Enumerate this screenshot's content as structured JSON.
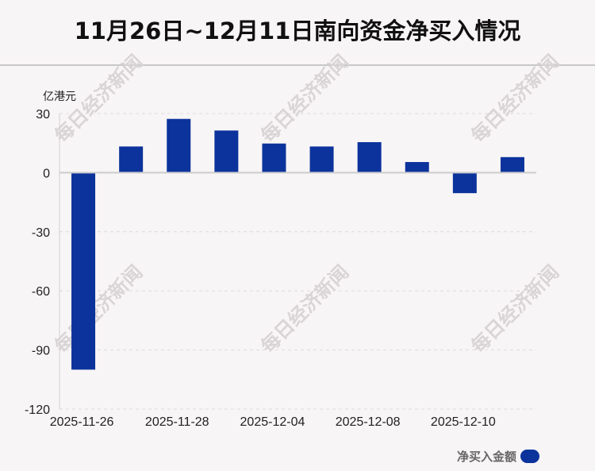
{
  "title": "11月26日~12月11日南向资金净买入情况",
  "watermark": "每日经济新闻",
  "chart_data": {
    "type": "bar",
    "title": "11月26日~12月11日南向资金净买入情况",
    "ylabel": "亿港元",
    "xlabel": "",
    "categories": [
      "2025-11-26",
      "",
      "2025-11-28",
      "",
      "2025-12-04",
      "",
      "2025-12-08",
      "",
      "2025-12-10",
      ""
    ],
    "series": [
      {
        "name": "净买入金额",
        "color": "#0c339c",
        "values": [
          -100.0,
          13.3,
          27.3,
          21.4,
          14.8,
          13.3,
          15.5,
          5.4,
          -10.4,
          7.9
        ]
      }
    ],
    "yticks": [
      30,
      0,
      -30,
      -60,
      -90,
      -120
    ],
    "ylim": [
      -120,
      30
    ],
    "grid": true,
    "legend": "bottom-right"
  }
}
